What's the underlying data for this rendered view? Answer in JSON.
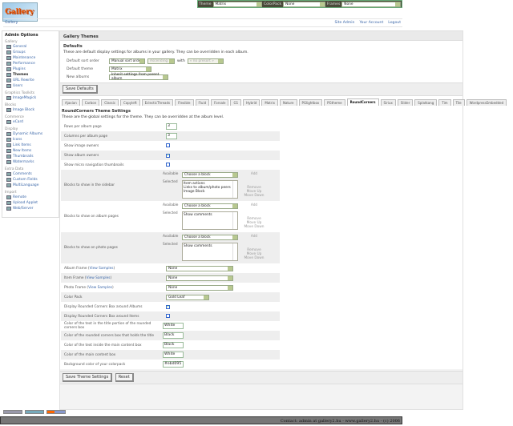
{
  "logo_text": "Gallery",
  "topbar": {
    "theme_label": "Theme",
    "theme_value": "Matrix",
    "colorpack_label": "ColorPack",
    "colorpack_value": "None",
    "frames_label": "Frames",
    "frames_value": "None"
  },
  "breadcrumb": {
    "root": "Gallery",
    "links": [
      "Site Admin",
      "Your Account",
      "Logout"
    ]
  },
  "sidebar": {
    "title": "Admin Options",
    "groups": [
      {
        "label": "Gallery",
        "items": [
          "General",
          "Groups",
          "Maintenance",
          "Performance",
          "Plugins",
          "Themes",
          "URL Rewrite",
          "Users"
        ]
      },
      {
        "label": "Graphics Toolkits",
        "items": [
          "ImageMagick"
        ]
      },
      {
        "label": "Blocks",
        "items": [
          "Image Block"
        ]
      },
      {
        "label": "Commerce",
        "items": [
          "eCard"
        ]
      },
      {
        "label": "Display",
        "items": [
          "Dynamic Albums",
          "Icons",
          "Link Items",
          "New Items",
          "Thumbnails",
          "Watermarks"
        ]
      },
      {
        "label": "Extra Data",
        "items": [
          "Comments",
          "Custom Fields",
          "MultiLanguage"
        ]
      },
      {
        "label": "Import",
        "items": [
          "Remote",
          "Upload Applet",
          "Web/Server"
        ]
      }
    ],
    "current": "Themes"
  },
  "main": {
    "title": "Gallery Themes",
    "defaults": {
      "heading": "Defaults",
      "desc": "These are default display settings for albums in your gallery. They can be overridden in each album.",
      "sort_label": "Default sort order",
      "sort_value": "Manual sort order",
      "direction_value": "Ascending",
      "with_label": "with",
      "preset_value": "« no presort »",
      "theme_label": "Default theme",
      "theme_value": "Matrix",
      "new_albums_label": "New albums",
      "new_albums_value": "Inherit settings from parent album",
      "save_label": "Save Defaults"
    },
    "tabs": [
      "Ajaxian",
      "Carbon",
      "Classic",
      "Copyleft",
      "EclecticThreads",
      "Flexible",
      "Fluid",
      "Forsale",
      "G1",
      "Hybrid",
      "Matrix",
      "Nature",
      "PGlightbox",
      "PGtheme",
      "RoundCorners",
      "Siriux",
      "Slider",
      "Splatkang",
      "Tim",
      "Tile",
      "WordpressEmbedded"
    ],
    "active_tab": "RoundCorners",
    "theme_settings": {
      "heading": "RoundCorners Theme Settings",
      "desc": "These are the global settings for the theme. They can be overridden at the album level.",
      "rows_label": "Rows per album page",
      "rows_value": "3",
      "cols_label": "Columns per album page",
      "cols_value": "3",
      "image_owners_label": "Show image owners",
      "image_owners": false,
      "album_owners_label": "Show album owners",
      "album_owners": true,
      "micro_label": "Show micro navigation thumbnails",
      "micro": false,
      "available_label": "Available",
      "selected_label": "Selected",
      "choose": "Choose a block",
      "add": "Add",
      "remove": "Remove",
      "move_up": "Move Up",
      "move_down": "Move Down",
      "sidebar_blocks_label": "Blocks to show in the sidebar",
      "sidebar_blocks": [
        "Item actions",
        "Links to album/photo peers",
        "Image Block"
      ],
      "album_blocks_label": "Blocks to show on album pages",
      "album_blocks": [
        "Show comments"
      ],
      "photo_blocks_label": "Blocks to show on photo pages",
      "photo_blocks": [
        "Show comments"
      ],
      "view_samples": "View Samples",
      "album_frame_label": "Album Frame",
      "album_frame": "None",
      "item_frame_label": "Item Frame",
      "item_frame": "None",
      "photo_frame_label": "Photo Frame",
      "photo_frame": "None",
      "colorpack_label": "Color Pack",
      "colorpack": "Gold Leaf",
      "rc_albums_label": "Display Rounded Corners Box around Albums",
      "rc_albums": true,
      "rc_items_label": "Display Rounded Corners Box around Items",
      "rc_items": false,
      "title_text_label": "Color of the text in the title portion of the rounded corners box",
      "title_text": "White",
      "title_box_label": "Color of the rounded corners box that holds the title",
      "title_box": "Black",
      "content_text_label": "Color of the text inside the main content box",
      "content_text": "Black",
      "content_box_label": "Color of the main content box",
      "content_box": "White",
      "bg_label": "Background color of your colorpack",
      "bg": "#ebd095",
      "save_label": "Save Theme Settings",
      "reset_label": "Reset"
    }
  },
  "footer": "Contact: admin at gallery2.hu - www.gallery2.hu - (c) 2006"
}
